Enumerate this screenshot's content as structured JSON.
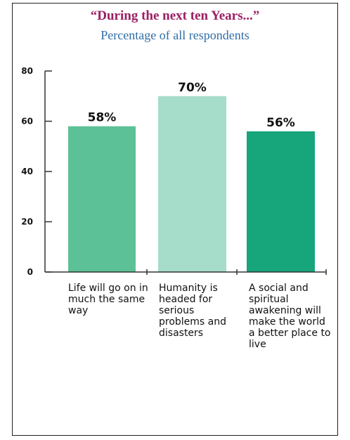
{
  "chart_data": {
    "type": "bar",
    "title": "“During the next ten Years...”",
    "subtitle": "Percentage of all respondents",
    "categories": [
      "Life will go on in much the same way",
      "Humanity is headed for serious problems and disasters",
      "A social and spiritual awakening will make the world a better place to live"
    ],
    "values": [
      58,
      70,
      56
    ],
    "value_labels": [
      "58%",
      "70%",
      "56%"
    ],
    "ylim": [
      0,
      80
    ],
    "yticks": [
      0,
      20,
      40,
      60,
      80
    ],
    "ytick_labels": [
      "0",
      "20",
      "40",
      "60",
      "80"
    ],
    "grid": false,
    "legend": "none",
    "colors": [
      "#5cc196",
      "#a6dcca",
      "#17a57b"
    ],
    "title_color": "#9b1f63",
    "subtitle_color": "#2f6da6"
  }
}
